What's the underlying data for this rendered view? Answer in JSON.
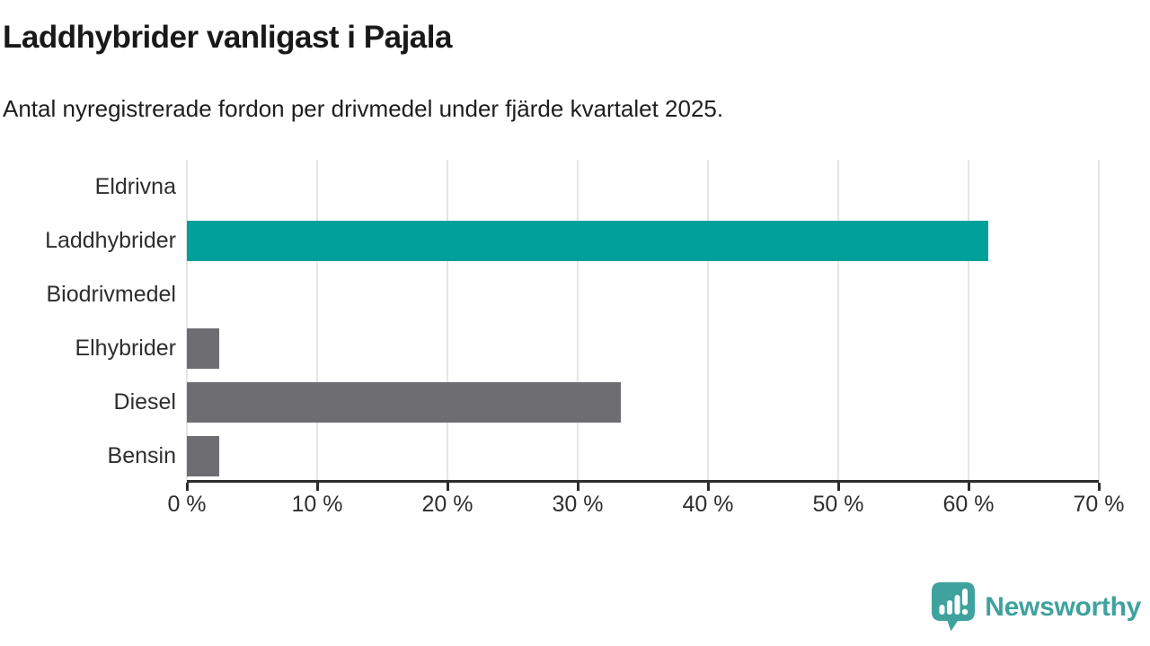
{
  "header": {
    "title": "Laddhybrider vanligast i Pajala",
    "subtitle": "Antal nyregistrerade fordon per drivmedel under fjärde kvartalet 2025."
  },
  "chart_data": {
    "type": "bar",
    "orientation": "horizontal",
    "title": "Laddhybrider vanligast i Pajala",
    "subtitle": "Antal nyregistrerade fordon per drivmedel under fjärde kvartalet 2025.",
    "categories": [
      "Eldrivna",
      "Laddhybrider",
      "Biodrivmedel",
      "Elhybrider",
      "Diesel",
      "Bensin"
    ],
    "values": [
      0,
      61.5,
      0,
      2.5,
      33.3,
      2.5
    ],
    "unit": "%",
    "xlim": [
      0,
      70
    ],
    "x_ticks": [
      0,
      10,
      20,
      30,
      40,
      50,
      60,
      70
    ],
    "x_tick_labels": [
      "0 %",
      "10 %",
      "20 %",
      "30 %",
      "40 %",
      "50 %",
      "60 %",
      "70 %"
    ],
    "grid": true,
    "legend": "none",
    "highlight_index": 1,
    "colors": {
      "highlight": "#00a09a",
      "default": "#6e6d72",
      "gridline": "#e6e6e6",
      "axis": "#2d2d2d"
    }
  },
  "footer": {
    "brand": "Newsworthy",
    "brand_color": "#3fa29e",
    "logo_icon": "bar-chart-speech-bubble"
  }
}
